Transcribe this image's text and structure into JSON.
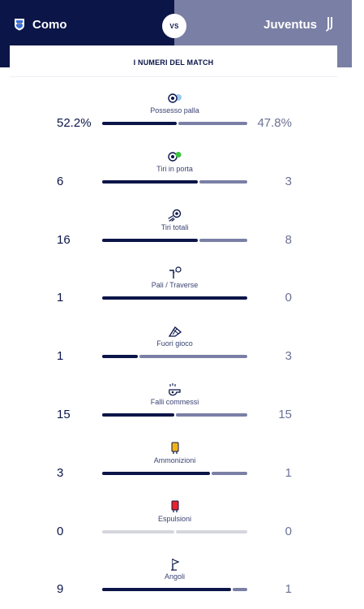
{
  "header": {
    "home_team": "Como",
    "away_team": "Juventus",
    "vs_label": "VS",
    "home_logo_icon": "como-crest-icon",
    "away_logo_icon": "juventus-logo-icon",
    "colors": {
      "home": "#0b1548",
      "away": "#7a7fa5"
    }
  },
  "card": {
    "title": "I NUMERI DEL MATCH"
  },
  "stats": [
    {
      "label": "Possesso palla",
      "home": "52.2%",
      "away": "47.8%",
      "home_share": 0.522,
      "icon": "possession-ball-icon"
    },
    {
      "label": "Tiri in porta",
      "home": "6",
      "away": "3",
      "home_share": 0.667,
      "icon": "shots-on-target-icon"
    },
    {
      "label": "Tiri totali",
      "home": "16",
      "away": "8",
      "home_share": 0.667,
      "icon": "total-shots-icon"
    },
    {
      "label": "Pali / Traverse",
      "home": "1",
      "away": "0",
      "home_share": 1.0,
      "icon": "woodwork-icon"
    },
    {
      "label": "Fuori gioco",
      "home": "1",
      "away": "3",
      "home_share": 0.25,
      "icon": "offside-flag-icon"
    },
    {
      "label": "Falli commessi",
      "home": "15",
      "away": "15",
      "home_share": 0.5,
      "icon": "whistle-icon"
    },
    {
      "label": "Ammonizioni",
      "home": "3",
      "away": "1",
      "home_share": 0.75,
      "icon": "yellow-card-icon"
    },
    {
      "label": "Espulsioni",
      "home": "0",
      "away": "0",
      "home_share": null,
      "icon": "red-card-icon"
    },
    {
      "label": "Angoli",
      "home": "9",
      "away": "1",
      "home_share": 0.9,
      "icon": "corner-flag-icon"
    }
  ]
}
